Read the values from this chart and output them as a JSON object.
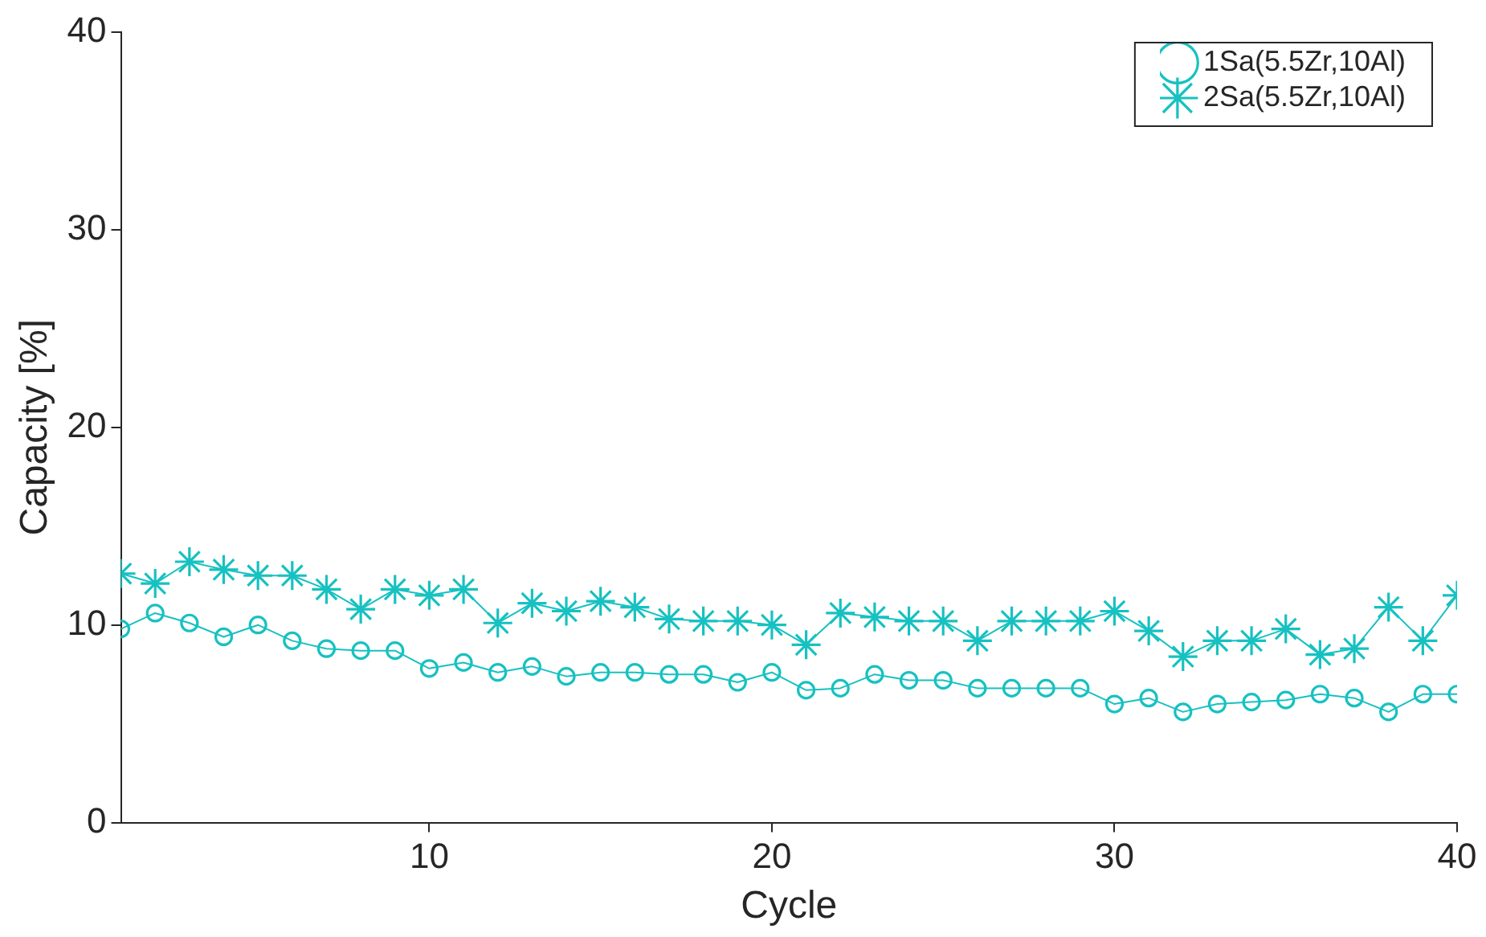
{
  "chart_data": {
    "type": "line",
    "xlabel": "Cycle",
    "ylabel": "Capacity [%]",
    "x": [
      1,
      2,
      3,
      4,
      5,
      6,
      7,
      8,
      9,
      10,
      11,
      12,
      13,
      14,
      15,
      16,
      17,
      18,
      19,
      20,
      21,
      22,
      23,
      24,
      25,
      26,
      27,
      28,
      29,
      30,
      31,
      32,
      33,
      34,
      35,
      36,
      37,
      38,
      39,
      40
    ],
    "xlim": [
      1,
      40
    ],
    "xticks": [
      10,
      20,
      30,
      40
    ],
    "ylim": [
      0,
      40
    ],
    "yticks": [
      0,
      10,
      20,
      30,
      40
    ],
    "grid": false,
    "legend": "top right",
    "line_style": "solid",
    "series": [
      {
        "name": "1Sa(5.5Zr,10Al)",
        "color": "#17c1c1",
        "marker": "circle",
        "values": [
          9.8,
          10.6,
          10.1,
          9.4,
          10.0,
          9.2,
          8.8,
          8.7,
          8.7,
          7.8,
          8.1,
          7.6,
          7.9,
          7.4,
          7.6,
          7.6,
          7.5,
          7.5,
          7.1,
          7.6,
          6.7,
          6.8,
          7.5,
          7.2,
          7.2,
          6.8,
          6.8,
          6.8,
          6.8,
          6.0,
          6.3,
          5.6,
          6.0,
          6.1,
          6.2,
          6.5,
          6.3,
          5.6,
          6.5,
          6.5
        ]
      },
      {
        "name": "2Sa(5.5Zr,10Al)",
        "color": "#17c1c1",
        "marker": "cross",
        "values": [
          12.6,
          12.1,
          13.2,
          12.8,
          12.5,
          12.5,
          11.8,
          10.8,
          11.8,
          11.5,
          11.8,
          10.1,
          11.1,
          10.7,
          11.2,
          10.9,
          10.3,
          10.2,
          10.2,
          10.0,
          9.0,
          10.6,
          10.4,
          10.2,
          10.2,
          9.2,
          10.2,
          10.2,
          10.2,
          10.7,
          9.7,
          8.4,
          9.2,
          9.2,
          9.8,
          8.5,
          8.8,
          10.9,
          9.2,
          11.5
        ]
      }
    ]
  }
}
